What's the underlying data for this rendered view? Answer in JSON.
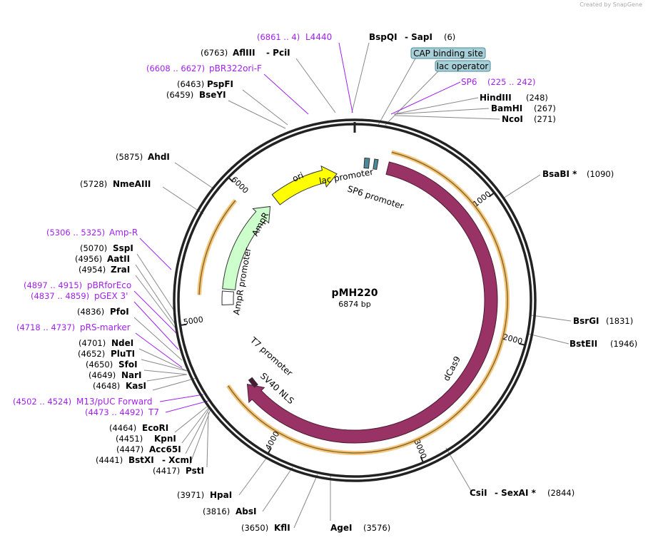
{
  "credit": "Created by SnapGene",
  "plasmid": {
    "name": "pMH220",
    "length": "6874 bp"
  },
  "ticks": [
    "1000",
    "2000",
    "3000",
    "4000",
    "5000",
    "6000"
  ],
  "features": {
    "ori": "ori",
    "ampr": "AmpR",
    "ampr_promoter": "AmpR promoter",
    "lac_promoter": "lac promoter",
    "sp6_promoter": "SP6 promoter",
    "t7_promoter": "T7 promoter",
    "sv40": "SV40 NLS",
    "dcas9": "dCas9"
  },
  "boxed": {
    "cap": "CAP binding site",
    "lacop": "lac operator"
  },
  "primers": [
    {
      "range": "(6861 .. 4)",
      "name": "L4440"
    },
    {
      "range": "(6608 .. 6627)",
      "name": "pBR322ori-F"
    },
    {
      "range": "(225 .. 242)",
      "name": "SP6"
    },
    {
      "range": "(5306 .. 5325)",
      "name": "Amp-R"
    },
    {
      "range": "(4897 .. 4915)",
      "name": "pBRforEco"
    },
    {
      "range": "(4837 .. 4859)",
      "name": "pGEX 3'"
    },
    {
      "range": "(4718 .. 4737)",
      "name": "pRS-marker"
    },
    {
      "range": "(4502 .. 4524)",
      "name": "M13/pUC Forward"
    },
    {
      "range": "(4473 .. 4492)",
      "name": "T7"
    }
  ],
  "enzymes": [
    {
      "name": "BspQI",
      "name2": "- SapI",
      "pos": "(6)"
    },
    {
      "name": "AflIII",
      "name2": "- PciI",
      "pos": "(6763)"
    },
    {
      "name": "PspFI",
      "pos": "(6463)"
    },
    {
      "name": "BseYI",
      "pos": "(6459)"
    },
    {
      "name": "HindIII",
      "pos": "(248)"
    },
    {
      "name": "BamHI",
      "pos": "(267)"
    },
    {
      "name": "NcoI",
      "pos": "(271)"
    },
    {
      "name": "AhdI",
      "pos": "(5875)"
    },
    {
      "name": "BsaBI *",
      "pos": "(1090)"
    },
    {
      "name": "NmeAIII",
      "pos": "(5728)"
    },
    {
      "name": "SspI",
      "pos": "(5070)"
    },
    {
      "name": "AatII",
      "pos": "(4956)"
    },
    {
      "name": "ZraI",
      "pos": "(4954)"
    },
    {
      "name": "PfoI",
      "pos": "(4836)"
    },
    {
      "name": "BsrGI",
      "pos": "(1831)"
    },
    {
      "name": "NdeI",
      "pos": "(4701)"
    },
    {
      "name": "BstEII",
      "pos": "(1946)"
    },
    {
      "name": "PluTI",
      "pos": "(4652)"
    },
    {
      "name": "SfoI",
      "pos": "(4650)"
    },
    {
      "name": "NarI",
      "pos": "(4649)"
    },
    {
      "name": "KasI",
      "pos": "(4648)"
    },
    {
      "name": "EcoRI",
      "pos": "(4464)"
    },
    {
      "name": "KpnI",
      "pos": "(4451)"
    },
    {
      "name": "Acc65I",
      "pos": "(4447)"
    },
    {
      "name": "BstXI",
      "name2": "- XcmI",
      "pos": "(4441)"
    },
    {
      "name": "PstI",
      "pos": "(4417)"
    },
    {
      "name": "CsiI",
      "name2": "- SexAI *",
      "pos": "(2844)"
    },
    {
      "name": "HpaI",
      "pos": "(3971)"
    },
    {
      "name": "AbsI",
      "pos": "(3816)"
    },
    {
      "name": "KflI",
      "pos": "(3650)"
    },
    {
      "name": "AgeI",
      "pos": "(3576)"
    }
  ],
  "colors": {
    "dcas9": "#993366",
    "ori": "#ffff00",
    "ampr": "#ccffcc",
    "primer": "#a020f0",
    "orange": "#f5c77e",
    "box": "#a8d0d8"
  }
}
